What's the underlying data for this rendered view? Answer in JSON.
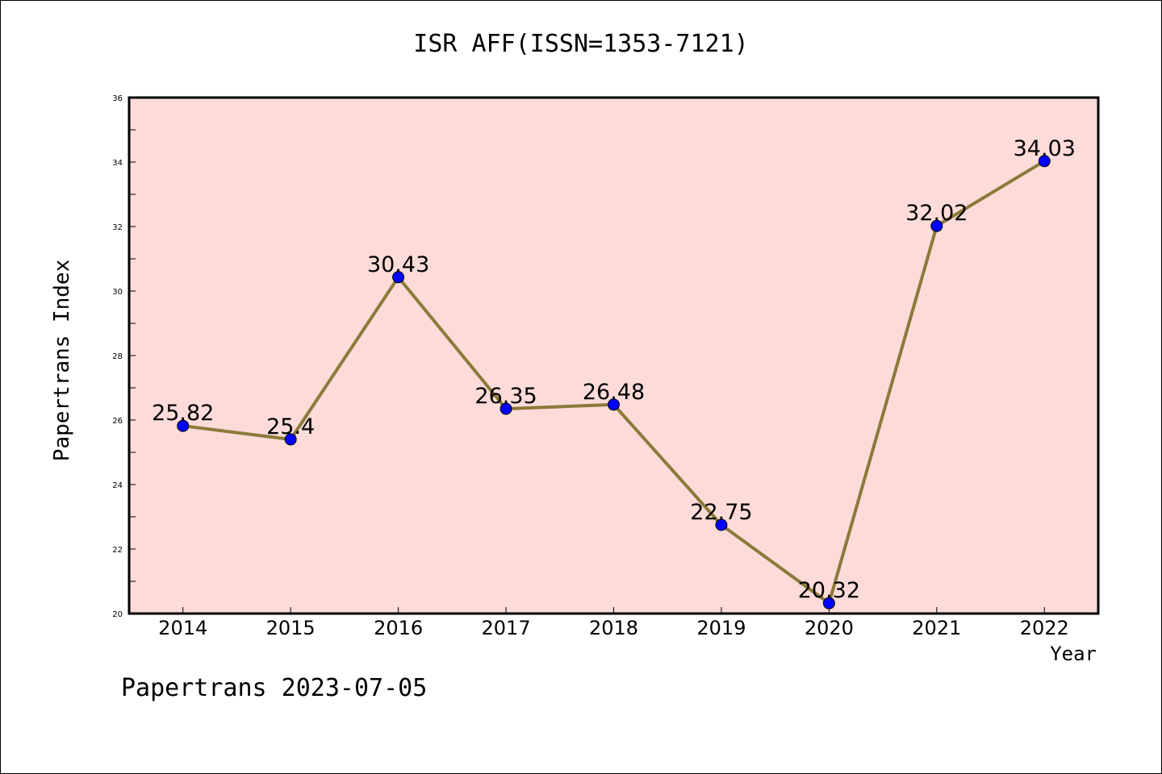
{
  "title": "ISR AFF(ISSN=1353-7121)",
  "footer": "Papertrans 2023-07-05",
  "chart_data": {
    "type": "line",
    "title": "ISR AFF(ISSN=1353-7121)",
    "xlabel": "Year",
    "ylabel": "Papertrans Index",
    "categories": [
      "2014",
      "2015",
      "2016",
      "2017",
      "2018",
      "2019",
      "2020",
      "2021",
      "2022"
    ],
    "values": [
      25.82,
      25.4,
      30.43,
      26.35,
      26.48,
      22.75,
      20.32,
      32.02,
      34.03
    ],
    "data_labels": [
      "25.82",
      "25.4",
      "30.43",
      "26.35",
      "26.48",
      "22.75",
      "20.32",
      "32.02",
      "34.03"
    ],
    "ylim": [
      20,
      36
    ],
    "yticks": [
      20,
      22,
      24,
      26,
      28,
      30,
      32,
      34,
      36
    ],
    "grid": false,
    "legend": "none",
    "colors": {
      "plot_background": "#fddbd9",
      "line": "#8b7a3a",
      "marker": "#0000ff"
    }
  }
}
